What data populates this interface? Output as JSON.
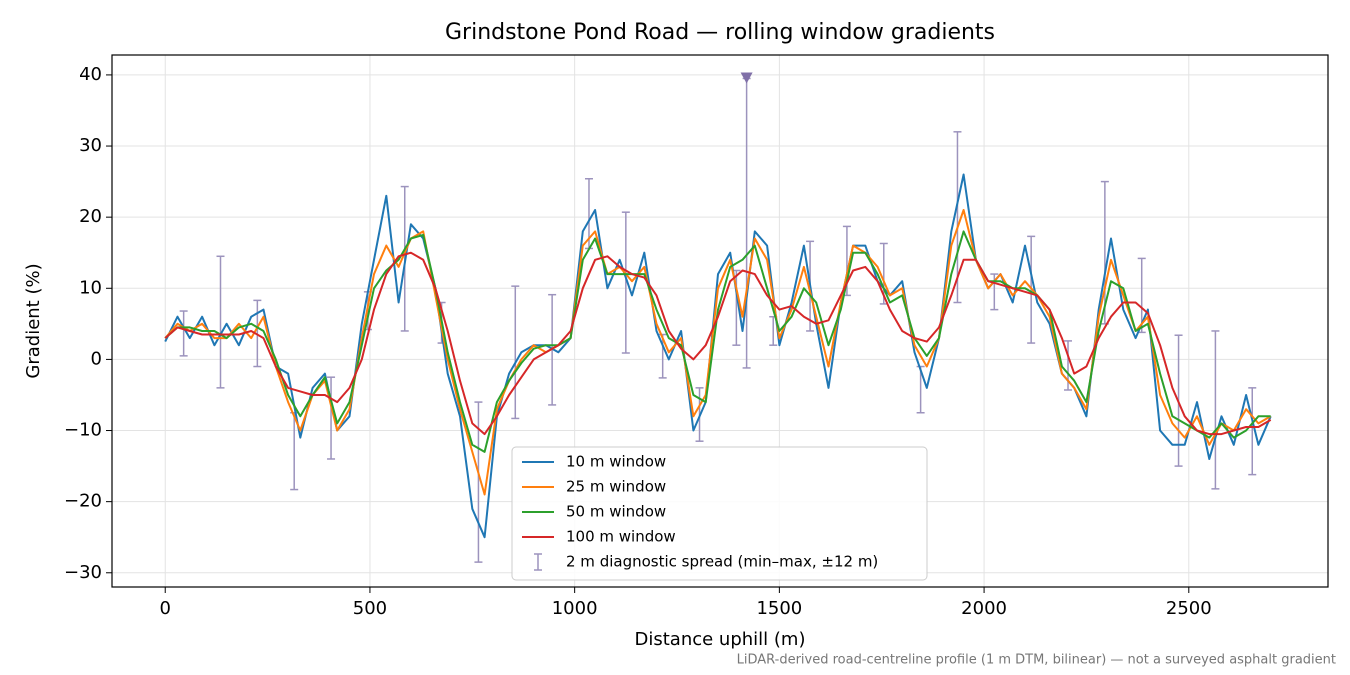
{
  "chart_data": {
    "type": "line",
    "title": "Grindstone Pond Road — rolling window gradients",
    "xlabel": "Distance uphill (m)",
    "ylabel": "Gradient (%)",
    "footnote": "LiDAR-derived road-centreline profile (1 m DTM, bilinear) — not a surveyed asphalt gradient",
    "xlim": [
      -130,
      2840
    ],
    "ylim": [
      -32,
      42.8
    ],
    "xticks": [
      0,
      500,
      1000,
      1500,
      2000,
      2500
    ],
    "yticks": [
      {
        "value": -30,
        "label": "−30"
      },
      {
        "value": -20,
        "label": "−20"
      },
      {
        "value": -10,
        "label": "−10"
      },
      0,
      10,
      20,
      30,
      40
    ],
    "grid": true,
    "legend": "lower center",
    "x": [
      0,
      30,
      60,
      90,
      120,
      150,
      180,
      210,
      240,
      270,
      300,
      330,
      360,
      390,
      420,
      450,
      480,
      510,
      540,
      570,
      600,
      630,
      660,
      690,
      720,
      750,
      780,
      810,
      840,
      870,
      900,
      930,
      960,
      990,
      1020,
      1050,
      1080,
      1110,
      1140,
      1170,
      1200,
      1230,
      1260,
      1290,
      1320,
      1350,
      1380,
      1410,
      1440,
      1470,
      1500,
      1530,
      1560,
      1590,
      1620,
      1650,
      1680,
      1710,
      1740,
      1770,
      1800,
      1830,
      1860,
      1890,
      1920,
      1950,
      1980,
      2010,
      2040,
      2070,
      2100,
      2130,
      2160,
      2190,
      2220,
      2250,
      2280,
      2310,
      2340,
      2370,
      2400,
      2430,
      2460,
      2490,
      2520,
      2550,
      2580,
      2610,
      2640,
      2670,
      2700
    ],
    "series": [
      {
        "name": "10 m window",
        "color": "#1f77b4",
        "values": [
          2.5,
          6,
          3,
          6,
          2,
          5,
          2,
          6,
          7,
          -1,
          -2,
          -11,
          -4,
          -2,
          -10,
          -8,
          5,
          14,
          23,
          8,
          19,
          17,
          10,
          -2,
          -8,
          -21,
          -25,
          -8,
          -2,
          1,
          2,
          2,
          1,
          3,
          18,
          21,
          10,
          14,
          9,
          15,
          4,
          0,
          4,
          -10,
          -6,
          12,
          15,
          4,
          18,
          16,
          2,
          8,
          16,
          5,
          -4,
          8,
          16,
          16,
          11,
          9,
          11,
          1,
          -4,
          3,
          18,
          26,
          14,
          10,
          12,
          8,
          16,
          8,
          5,
          -2,
          -4,
          -8,
          7,
          17,
          7,
          3,
          7,
          -10,
          -12,
          -12,
          -6,
          -14,
          -8,
          -12,
          -5,
          -12,
          -8
        ]
      },
      {
        "name": "25 m window",
        "color": "#ff7f0e",
        "values": [
          3,
          5,
          4,
          5,
          3,
          3,
          5,
          3,
          6,
          -1,
          -6,
          -10,
          -5,
          -3,
          -10,
          -7,
          3,
          12,
          16,
          13,
          17,
          18,
          9,
          0,
          -7,
          -13,
          -19,
          -7,
          -3,
          0,
          2,
          1,
          2,
          3,
          16,
          18,
          12,
          13,
          11,
          13,
          5,
          1,
          3,
          -8,
          -5,
          10,
          14,
          6,
          17,
          14,
          3,
          7,
          13,
          6,
          -1,
          8,
          16,
          15,
          13,
          9,
          10,
          2,
          -1,
          3,
          16,
          21,
          14,
          10,
          12,
          9,
          11,
          9,
          6,
          -2,
          -4,
          -7,
          6,
          14,
          9,
          4,
          6,
          -5,
          -9,
          -11,
          -8,
          -12,
          -9,
          -10,
          -7,
          -9,
          -8
        ]
      },
      {
        "name": "50 m window",
        "color": "#2ca02c",
        "values": [
          3,
          4.5,
          4.5,
          4,
          4,
          3,
          4.5,
          5,
          4,
          0,
          -5,
          -8,
          -5,
          -2.5,
          -9,
          -6,
          2,
          10,
          12.5,
          14,
          17,
          17.5,
          10,
          1,
          -6,
          -12,
          -13,
          -6,
          -3,
          -0.5,
          1.5,
          2,
          2,
          3,
          14,
          17,
          12,
          12,
          12,
          12,
          7,
          3,
          2,
          -5,
          -6,
          7,
          13,
          14,
          16,
          10,
          4,
          6,
          10,
          8,
          2,
          7,
          15,
          15,
          12,
          8,
          9,
          3,
          0.5,
          3,
          12,
          18,
          14,
          11,
          11,
          10,
          10,
          9,
          7,
          -1,
          -3,
          -6,
          4,
          11,
          10,
          4,
          5,
          -2,
          -8,
          -9,
          -10,
          -11,
          -9,
          -11,
          -10,
          -8,
          -8
        ]
      },
      {
        "name": "100 m window",
        "color": "#d62728",
        "values": [
          3,
          4.5,
          4,
          3.5,
          3.5,
          3.5,
          3.5,
          4,
          3,
          -1,
          -4,
          -4.5,
          -5,
          -5,
          -6,
          -4,
          0,
          7,
          12,
          14.5,
          15,
          14,
          10,
          4,
          -3,
          -9,
          -10.5,
          -8,
          -5,
          -2.5,
          0,
          1,
          2,
          4,
          10,
          14,
          14.5,
          13,
          12,
          11.5,
          9,
          4,
          1.5,
          0,
          2,
          6,
          11,
          12.5,
          12,
          9,
          7,
          7.5,
          6,
          5,
          5.5,
          9,
          12.5,
          13,
          11,
          7,
          4,
          3,
          2.5,
          4.5,
          9,
          14,
          14,
          11,
          10.5,
          10,
          9.5,
          9,
          7,
          3,
          -2,
          -1,
          3,
          6,
          8,
          8,
          6.5,
          2,
          -4,
          -8,
          -10,
          -10.5,
          -10.5,
          -10,
          -9.5,
          -9.5,
          -8.5
        ]
      }
    ],
    "spread": {
      "name": "2 m diagnostic spread (min–max, ±12 m)",
      "color": "#9c93bd",
      "x": [
        45,
        135,
        225,
        315,
        405,
        495,
        585,
        675,
        765,
        855,
        945,
        1035,
        1125,
        1215,
        1305,
        1395,
        1420,
        1485,
        1575,
        1665,
        1755,
        1845,
        1935,
        2025,
        2115,
        2205,
        2295,
        2385,
        2475,
        2565,
        2655
      ],
      "low": [
        0.5,
        -4,
        -1,
        -18.3,
        -14,
        4.2,
        4,
        2.3,
        -28.5,
        -8.3,
        -6.4,
        15.6,
        0.9,
        -2.6,
        -11.5,
        2,
        -1.2,
        2,
        4,
        9,
        7.8,
        -7.5,
        8,
        7,
        2.3,
        -4.3,
        5,
        3.8,
        -15,
        -18.2,
        -16.2
      ],
      "high": [
        6.8,
        14.5,
        8.3,
        -7.5,
        -2.5,
        9.5,
        24.3,
        8,
        -6,
        10.3,
        9.1,
        25.4,
        20.7,
        3.5,
        -4,
        12.5,
        39.5,
        6,
        16.6,
        18.7,
        16.3,
        -1,
        32,
        12,
        17.3,
        2.6,
        25,
        14.2,
        3.4,
        4,
        -4
      ]
    },
    "clip_marker": {
      "x": 1420,
      "y": 39.5,
      "color": "#8070a8"
    }
  }
}
